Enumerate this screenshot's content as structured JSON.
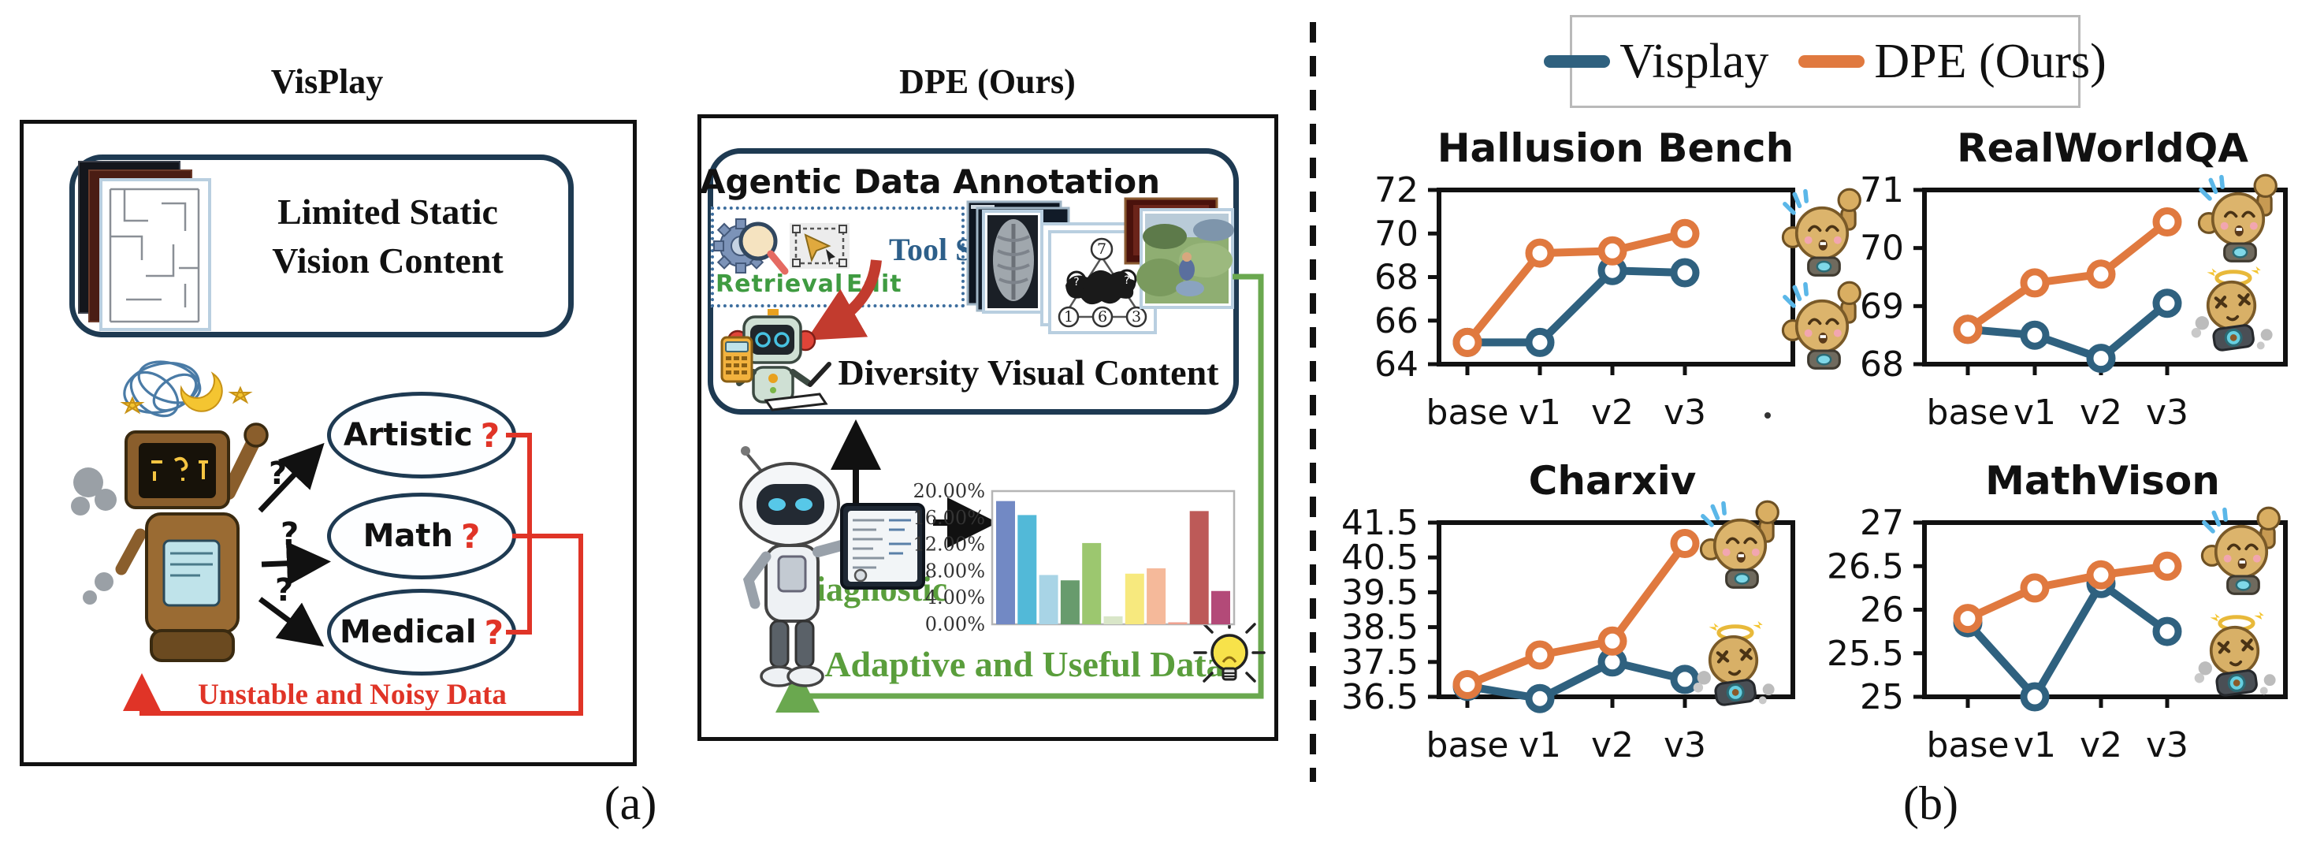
{
  "panel_a": {
    "label": "(a)",
    "visplay": {
      "title": "VisPlay",
      "content_box": {
        "line1": "Limited Static",
        "line2": "Vision Content"
      },
      "question_marks": [
        "?",
        "?",
        "?"
      ],
      "bubbles": [
        {
          "label": "Artistic",
          "q": "?"
        },
        {
          "label": "Math",
          "q": "?"
        },
        {
          "label": "Medical",
          "q": "?"
        }
      ],
      "warning": "Unstable and Noisy Data",
      "warning_color": "#e03427"
    },
    "dpe": {
      "title": "DPE (Ours)",
      "annotation_title": "Agentic Data Annotation",
      "tool_set_label": "Tool Set",
      "retrieval_label": "Retrieval",
      "edit_label": "Edit",
      "diversity_label": "Diversity Visual Content",
      "diagnostic_label": "Diagnostic",
      "adaptive_label": "Adaptive and Useful Data",
      "puzzle_numbers": [
        "7",
        "1",
        "6",
        "3"
      ],
      "accent_green": "#5a9e3c",
      "accent_navy": "#1e3a52"
    }
  },
  "panel_b": {
    "label": "(b)",
    "legend": [
      {
        "label": "Visplay",
        "color": "#2f617f"
      },
      {
        "label": "DPE (Ours)",
        "color": "#e0793f"
      }
    ]
  },
  "chart_data": [
    {
      "id": "hallusion",
      "type": "line",
      "title": "Hallusion Bench",
      "categories": [
        "base",
        "v1",
        "v2",
        "v3"
      ],
      "ylim": [
        64,
        72
      ],
      "yticks": [
        64,
        66,
        68,
        70,
        72
      ],
      "ytick_labels": [
        "64",
        "66",
        "68",
        "70",
        "72"
      ],
      "grid": false,
      "legend_position": "shared-top",
      "series": [
        {
          "name": "Visplay",
          "color": "#2f617f",
          "values": [
            65.0,
            65.0,
            68.3,
            68.2
          ]
        },
        {
          "name": "DPE (Ours)",
          "color": "#e0793f",
          "values": [
            65.0,
            69.1,
            69.2,
            70.0
          ]
        }
      ],
      "emojis": [
        "cheer",
        "cheer"
      ],
      "stray_dot": true
    },
    {
      "id": "realworldqa",
      "type": "line",
      "title": "RealWorldQA",
      "categories": [
        "base",
        "v1",
        "v2",
        "v3"
      ],
      "ylim": [
        68,
        71
      ],
      "yticks": [
        68,
        69,
        70,
        71
      ],
      "ytick_labels": [
        "68",
        "69",
        "70",
        "71"
      ],
      "grid": false,
      "legend_position": "shared-top",
      "series": [
        {
          "name": "Visplay",
          "color": "#2f617f",
          "values": [
            68.6,
            68.5,
            68.1,
            69.05
          ]
        },
        {
          "name": "DPE (Ours)",
          "color": "#e0793f",
          "values": [
            68.6,
            69.4,
            69.55,
            70.45
          ]
        }
      ],
      "emojis": [
        "cheer",
        "dizzy"
      ],
      "stray_dot": false
    },
    {
      "id": "charxiv",
      "type": "line",
      "title": "Charxiv",
      "categories": [
        "base",
        "v1",
        "v2",
        "v3"
      ],
      "ylim": [
        36.5,
        41.5
      ],
      "yticks": [
        36.5,
        37.5,
        38.5,
        39.5,
        40.5,
        41.5
      ],
      "ytick_labels": [
        "36.5",
        "37.5",
        "38.5",
        "39.5",
        "40.5",
        "41.5"
      ],
      "grid": false,
      "legend_position": "shared-top",
      "series": [
        {
          "name": "Visplay",
          "color": "#2f617f",
          "values": [
            36.8,
            36.45,
            37.5,
            37.0
          ]
        },
        {
          "name": "DPE (Ours)",
          "color": "#e0793f",
          "values": [
            36.85,
            37.7,
            38.1,
            40.9
          ]
        }
      ],
      "emojis": [
        "cheer",
        "dizzy"
      ],
      "stray_dot": false
    },
    {
      "id": "mathvison",
      "type": "line",
      "title": "MathVison",
      "categories": [
        "base",
        "v1",
        "v2",
        "v3"
      ],
      "ylim": [
        25,
        27
      ],
      "yticks": [
        25,
        25.5,
        26,
        26.5,
        27
      ],
      "ytick_labels": [
        "25",
        "25.5",
        "26",
        "26.5",
        "27"
      ],
      "grid": false,
      "legend_position": "shared-top",
      "series": [
        {
          "name": "Visplay",
          "color": "#2f617f",
          "values": [
            25.85,
            25.0,
            26.3,
            25.75
          ]
        },
        {
          "name": "DPE (Ours)",
          "color": "#e0793f",
          "values": [
            25.9,
            26.25,
            26.4,
            26.5
          ]
        }
      ],
      "emojis": [
        "cheer",
        "dizzy"
      ],
      "stray_dot": false
    },
    {
      "id": "diagnostic",
      "type": "bar",
      "title": "",
      "ylim": [
        0,
        20
      ],
      "ytick_values": [
        0,
        4,
        8,
        12,
        16,
        20
      ],
      "ytick_labels": [
        "0.00%",
        "4.00%",
        "8.00%",
        "12.00%",
        "16.00%",
        "20.00%"
      ],
      "values": [
        18.5,
        16.4,
        7.4,
        6.6,
        12.2,
        1.2,
        7.6,
        8.4,
        0.3,
        17.0,
        5.0
      ],
      "colors": [
        "#7289c4",
        "#52b9d8",
        "#a8d4e6",
        "#689b6d",
        "#9cc76f",
        "#d9e6c8",
        "#f7e97e",
        "#f5b99a",
        "#efa18f",
        "#bd5a58",
        "#b34a78"
      ]
    }
  ]
}
